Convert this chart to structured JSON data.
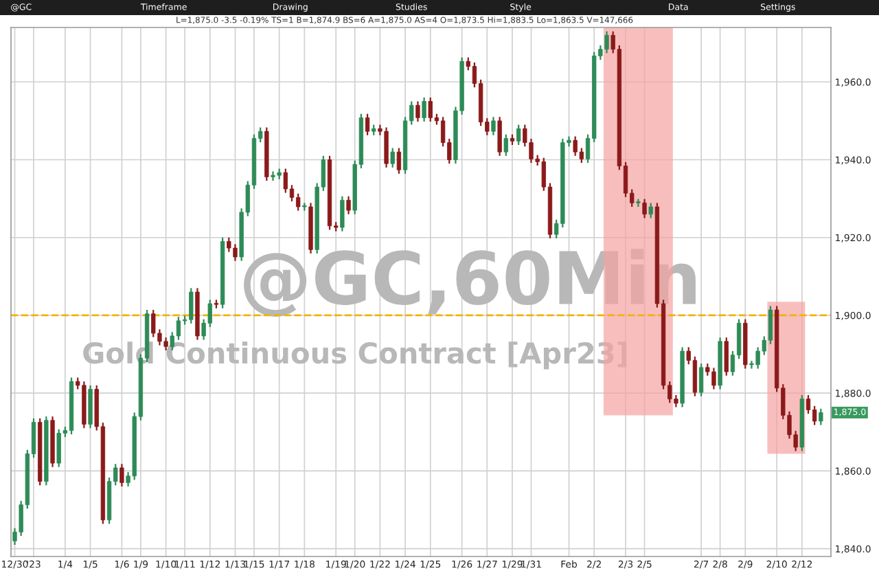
{
  "chart_data": {
    "type": "candlestick",
    "annotations": [
      "@GC,60Min",
      "Gold Continuous Contract [Apr23]",
      "L=1,875.0 -3.5 -0.19% TS=1 B=1,874.9 BS=6 A=1,875.0 AS=4 O=1,873.5 Hi=1,883.5 Lo=1,863.5 V=147,666",
      "@GC",
      "Timeframe",
      "Drawing",
      "Studies",
      "Style",
      "Data",
      "Settings",
      {
        "text": "1,875.0",
        "y": 1875
      }
    ],
    "categories": [
      "12/30",
      null,
      null,
      "'23",
      null,
      null,
      null,
      null,
      "1/4",
      null,
      null,
      null,
      "1/5",
      null,
      null,
      null,
      null,
      "1/6",
      null,
      null,
      "1/9",
      null,
      null,
      null,
      "1/10",
      null,
      null,
      "1/11",
      null,
      null,
      null,
      "1/12",
      null,
      null,
      null,
      "1/13",
      null,
      null,
      "1/15",
      null,
      null,
      null,
      "1/17",
      null,
      null,
      null,
      "1/18",
      null,
      null,
      null,
      null,
      "1/19",
      null,
      null,
      "1/20",
      null,
      null,
      null,
      "1/22",
      null,
      null,
      null,
      "1/24",
      null,
      null,
      null,
      "1/25",
      null,
      null,
      null,
      null,
      "1/26",
      null,
      null,
      null,
      "1/27",
      null,
      null,
      null,
      "1/29",
      null,
      null,
      "1/31",
      null,
      null,
      null,
      null,
      null,
      "Feb",
      null,
      null,
      null,
      "2/2",
      null,
      null,
      null,
      null,
      "2/3",
      null,
      null,
      "2/5",
      null,
      null,
      null,
      null,
      null,
      null,
      null,
      null,
      "2/7",
      null,
      null,
      "2/8",
      null,
      null,
      null,
      "2/9",
      null,
      null,
      null,
      null,
      "2/10",
      null,
      null,
      null,
      "2/12",
      null,
      null,
      null
    ],
    "ohlc": [
      [
        1842,
        1845.3,
        1841,
        1844.3
      ],
      [
        1844.3,
        1852.3,
        1843.3,
        1851.3
      ],
      [
        1851.3,
        1865.4,
        1850.3,
        1864.4
      ],
      [
        1864.4,
        1873.5,
        1863.4,
        1872.5
      ],
      [
        1872.5,
        1873.5,
        1856.3,
        1857.3
      ],
      [
        1857.3,
        1874,
        1856.3,
        1873
      ],
      [
        1873,
        1874,
        1861,
        1862
      ],
      [
        1862,
        1870.7,
        1861,
        1869.7
      ],
      [
        1869.7,
        1871.4,
        1868.7,
        1870.4
      ],
      [
        1870.4,
        1884,
        1869.4,
        1883
      ],
      [
        1883,
        1884,
        1881,
        1882
      ],
      [
        1882,
        1883,
        1871,
        1872
      ],
      [
        1872,
        1882,
        1871,
        1881
      ],
      [
        1881,
        1882,
        1870.4,
        1871.4
      ],
      [
        1871.4,
        1872.4,
        1846.4,
        1847.4
      ],
      [
        1847.4,
        1858.3,
        1846.4,
        1857.3
      ],
      [
        1857.3,
        1861.8,
        1856.3,
        1860.8
      ],
      [
        1860.8,
        1861.8,
        1856,
        1857
      ],
      [
        1857,
        1859.7,
        1856,
        1858.7
      ],
      [
        1858.7,
        1875,
        1857.7,
        1874
      ],
      [
        1874,
        1890,
        1873,
        1889
      ],
      [
        1889,
        1901.4,
        1888,
        1900.4
      ],
      [
        1900.4,
        1901.4,
        1894.4,
        1895.4
      ],
      [
        1895.4,
        1896.4,
        1892.3,
        1893.3
      ],
      [
        1893.3,
        1894.3,
        1891,
        1892
      ],
      [
        1892,
        1895.7,
        1891,
        1894.7
      ],
      [
        1894.7,
        1899.6,
        1893.7,
        1898.6
      ],
      [
        1898.6,
        1899.9,
        1897.6,
        1898.9
      ],
      [
        1898.9,
        1907,
        1897.9,
        1906
      ],
      [
        1906,
        1907,
        1893.7,
        1894.7
      ],
      [
        1894.7,
        1899,
        1893.7,
        1898
      ],
      [
        1898,
        1904,
        1897,
        1903
      ],
      [
        1903,
        1904,
        1901.8,
        1902.8
      ],
      [
        1902.8,
        1920,
        1901.8,
        1919
      ],
      [
        1919,
        1920,
        1916.3,
        1917.3
      ],
      [
        1917.3,
        1918.3,
        1914,
        1915
      ],
      [
        1915,
        1927.5,
        1914,
        1926.5
      ],
      [
        1926.5,
        1934.5,
        1925.5,
        1933.5
      ],
      [
        1933.5,
        1946.5,
        1932.5,
        1945.5
      ],
      [
        1945.5,
        1948.3,
        1944.5,
        1947.3
      ],
      [
        1947.3,
        1948.3,
        1934.6,
        1935.6
      ],
      [
        1935.6,
        1937,
        1934.6,
        1936
      ],
      [
        1936,
        1937.7,
        1935,
        1936.7
      ],
      [
        1936.7,
        1937.7,
        1931.5,
        1932.5
      ],
      [
        1932.5,
        1933.5,
        1929.3,
        1930.3
      ],
      [
        1930.3,
        1931.3,
        1926.9,
        1927.9
      ],
      [
        1927.9,
        1928.9,
        1926.9,
        1927.9
      ],
      [
        1927.9,
        1928.9,
        1915.9,
        1916.9
      ],
      [
        1916.9,
        1934,
        1915.9,
        1933
      ],
      [
        1933,
        1941,
        1932,
        1940
      ],
      [
        1940,
        1941,
        1922,
        1923
      ],
      [
        1923,
        1924,
        1921.6,
        1922.6
      ],
      [
        1922.6,
        1930.6,
        1921.6,
        1929.6
      ],
      [
        1929.6,
        1930.6,
        1926,
        1927
      ],
      [
        1927,
        1939.8,
        1926,
        1938.8
      ],
      [
        1938.8,
        1951.8,
        1937.8,
        1950.8
      ],
      [
        1950.8,
        1951.8,
        1946.3,
        1947.3
      ],
      [
        1947.3,
        1949,
        1946.3,
        1948
      ],
      [
        1948,
        1949,
        1946.3,
        1947.3
      ],
      [
        1947.3,
        1948.3,
        1938,
        1939
      ],
      [
        1939,
        1943,
        1938,
        1942
      ],
      [
        1942,
        1943,
        1936.4,
        1937.4
      ],
      [
        1937.4,
        1951,
        1936.4,
        1950
      ],
      [
        1950,
        1955,
        1949,
        1954
      ],
      [
        1954,
        1955,
        1949.8,
        1950.8
      ],
      [
        1950.8,
        1956,
        1949.8,
        1955
      ],
      [
        1955,
        1956,
        1949.8,
        1950.8
      ],
      [
        1950.8,
        1951.8,
        1949,
        1950
      ],
      [
        1950,
        1951,
        1943.4,
        1944.4
      ],
      [
        1944.4,
        1945.4,
        1939,
        1940
      ],
      [
        1940,
        1953.6,
        1939,
        1952.6
      ],
      [
        1952.6,
        1966.3,
        1951.6,
        1965.3
      ],
      [
        1965.3,
        1966.3,
        1963,
        1964
      ],
      [
        1964,
        1965,
        1958.6,
        1959.6
      ],
      [
        1959.6,
        1960.6,
        1948.7,
        1949.7
      ],
      [
        1949.7,
        1950.7,
        1946.3,
        1947.3
      ],
      [
        1947.3,
        1951,
        1946.3,
        1950
      ],
      [
        1950,
        1951,
        1941,
        1942
      ],
      [
        1942,
        1946.5,
        1941,
        1945.5
      ],
      [
        1945.5,
        1946.5,
        1943.8,
        1944.8
      ],
      [
        1944.8,
        1949,
        1943.8,
        1948
      ],
      [
        1948,
        1949,
        1943.4,
        1944.4
      ],
      [
        1944.4,
        1945.4,
        1939.2,
        1940.2
      ],
      [
        1940.2,
        1941.2,
        1938.5,
        1939.5
      ],
      [
        1939.5,
        1940.5,
        1932,
        1933
      ],
      [
        1933,
        1934,
        1919.8,
        1920.8
      ],
      [
        1920.8,
        1924.6,
        1919.8,
        1923.6
      ],
      [
        1923.6,
        1945.4,
        1922.6,
        1944.4
      ],
      [
        1944.4,
        1946,
        1943.4,
        1945
      ],
      [
        1945,
        1946,
        1941,
        1942
      ],
      [
        1942,
        1943,
        1939.2,
        1940.2
      ],
      [
        1940.2,
        1946.5,
        1939.2,
        1945.5
      ],
      [
        1945.5,
        1967.7,
        1944.5,
        1966.7
      ],
      [
        1966.7,
        1969.4,
        1965.7,
        1968.4
      ],
      [
        1968.4,
        1973,
        1967.4,
        1972
      ],
      [
        1972,
        1973,
        1967.4,
        1968.4
      ],
      [
        1968.4,
        1969.4,
        1937.4,
        1938.4
      ],
      [
        1938.4,
        1939.4,
        1930.4,
        1931.4
      ],
      [
        1931.4,
        1932.4,
        1927.9,
        1928.9
      ],
      [
        1928.9,
        1929.9,
        1927.9,
        1928.9
      ],
      [
        1928.9,
        1929.9,
        1925,
        1926
      ],
      [
        1926,
        1928.9,
        1925,
        1927.9
      ],
      [
        1927.9,
        1928.9,
        1902,
        1903
      ],
      [
        1903,
        1904,
        1881,
        1882
      ],
      [
        1882,
        1883,
        1877.5,
        1878.5
      ],
      [
        1878.5,
        1879.5,
        1876.4,
        1877.4
      ],
      [
        1877.4,
        1891.8,
        1876.4,
        1890.8
      ],
      [
        1890.8,
        1891.8,
        1887.4,
        1888.4
      ],
      [
        1888.4,
        1889.4,
        1879.2,
        1880.2
      ],
      [
        1880.2,
        1887.6,
        1879.2,
        1886.6
      ],
      [
        1886.6,
        1887.6,
        1884.5,
        1885.5
      ],
      [
        1885.5,
        1886.5,
        1881,
        1882
      ],
      [
        1882,
        1894.3,
        1881,
        1893.3
      ],
      [
        1893.3,
        1894.3,
        1884.5,
        1885.5
      ],
      [
        1885.5,
        1890.8,
        1884.5,
        1889.8
      ],
      [
        1889.8,
        1899,
        1888.8,
        1898
      ],
      [
        1898,
        1899,
        1886.3,
        1887.3
      ],
      [
        1887.3,
        1888.3,
        1886.3,
        1887.3
      ],
      [
        1887.3,
        1891.8,
        1886.3,
        1890.8
      ],
      [
        1890.8,
        1894.6,
        1889.8,
        1893.6
      ],
      [
        1893.6,
        1902.4,
        1892.6,
        1901.4
      ],
      [
        1901.4,
        1902.4,
        1880.3,
        1881.3
      ],
      [
        1881.3,
        1882.3,
        1873.3,
        1874.3
      ],
      [
        1874.3,
        1875.3,
        1868.3,
        1869.3
      ],
      [
        1869.3,
        1870.3,
        1865.1,
        1866.1
      ],
      [
        1866.1,
        1879.5,
        1865.1,
        1878.5
      ],
      [
        1878.5,
        1879.5,
        1874.7,
        1875.7
      ],
      [
        1875.7,
        1876.7,
        1871.8,
        1872.8
      ],
      [
        1872.8,
        1876,
        1871.8,
        1875
      ]
    ],
    "ylim": [
      1838,
      1974
    ],
    "yticks": [
      {
        "value": 1840,
        "label": "1,840.0"
      },
      {
        "value": 1860,
        "label": "1,860.0"
      },
      {
        "value": 1880,
        "label": "1,880.0"
      },
      {
        "value": 1900,
        "label": "1,900.0"
      },
      {
        "value": 1920,
        "label": "1,920.0"
      },
      {
        "value": 1940,
        "label": "1,940.0"
      },
      {
        "value": 1960,
        "label": "1,960.0"
      }
    ],
    "ref_lines": [
      {
        "axis": "y",
        "value": 1900,
        "color": "#f0b400",
        "line_style": "dashed"
      }
    ],
    "grid": true
  }
}
